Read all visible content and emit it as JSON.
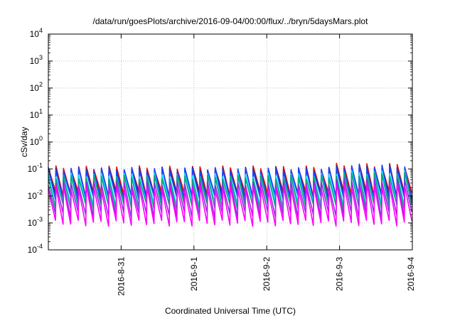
{
  "chart_data": {
    "type": "line",
    "title": "/data/run/goesPlots/archive/2016-09-04/00:00/flux/../bryn/5daysMars.plot",
    "xlabel": "Coordinated Universal Time (UTC)",
    "ylabel": "cSv/day",
    "yscale": "log",
    "ylim": [
      0.0001,
      10000
    ],
    "xlim": [
      "2016-08-30T00:00",
      "2016-09-04T00:00"
    ],
    "grid": true,
    "y_ticks": [
      {
        "base": "10",
        "exp": "4"
      },
      {
        "base": "10",
        "exp": "3"
      },
      {
        "base": "10",
        "exp": "2"
      },
      {
        "base": "10",
        "exp": "1"
      },
      {
        "base": "10",
        "exp": "0"
      },
      {
        "base": "10",
        "exp": "-1"
      },
      {
        "base": "10",
        "exp": "-2"
      },
      {
        "base": "10",
        "exp": "-3"
      },
      {
        "base": "10",
        "exp": "-4"
      }
    ],
    "x_ticks": [
      "2016-8-31",
      "2016-9-1",
      "2016-9-2",
      "2016-9-3",
      "2016-9-4"
    ],
    "pattern": {
      "sawtooth_cycles": 48,
      "peak_range": [
        0.1,
        0.13
      ],
      "trough_range": [
        0.001,
        0.02
      ]
    },
    "series": [
      {
        "color": "#ff0000",
        "peak": 0.11,
        "trough": 0.012
      },
      {
        "color": "#1e3a8a",
        "peak": 0.1,
        "trough": 0.01
      },
      {
        "color": "#1e40ff",
        "peak": 0.095,
        "trough": 0.008
      },
      {
        "color": "#00e5ff",
        "peak": 0.06,
        "trough": 0.005
      },
      {
        "color": "#00a878",
        "peak": 0.05,
        "trough": 0.004
      },
      {
        "color": "#8a2be2",
        "peak": 0.03,
        "trough": 0.002
      },
      {
        "color": "#ff00ff",
        "peak": 0.02,
        "trough": 0.001
      }
    ]
  }
}
